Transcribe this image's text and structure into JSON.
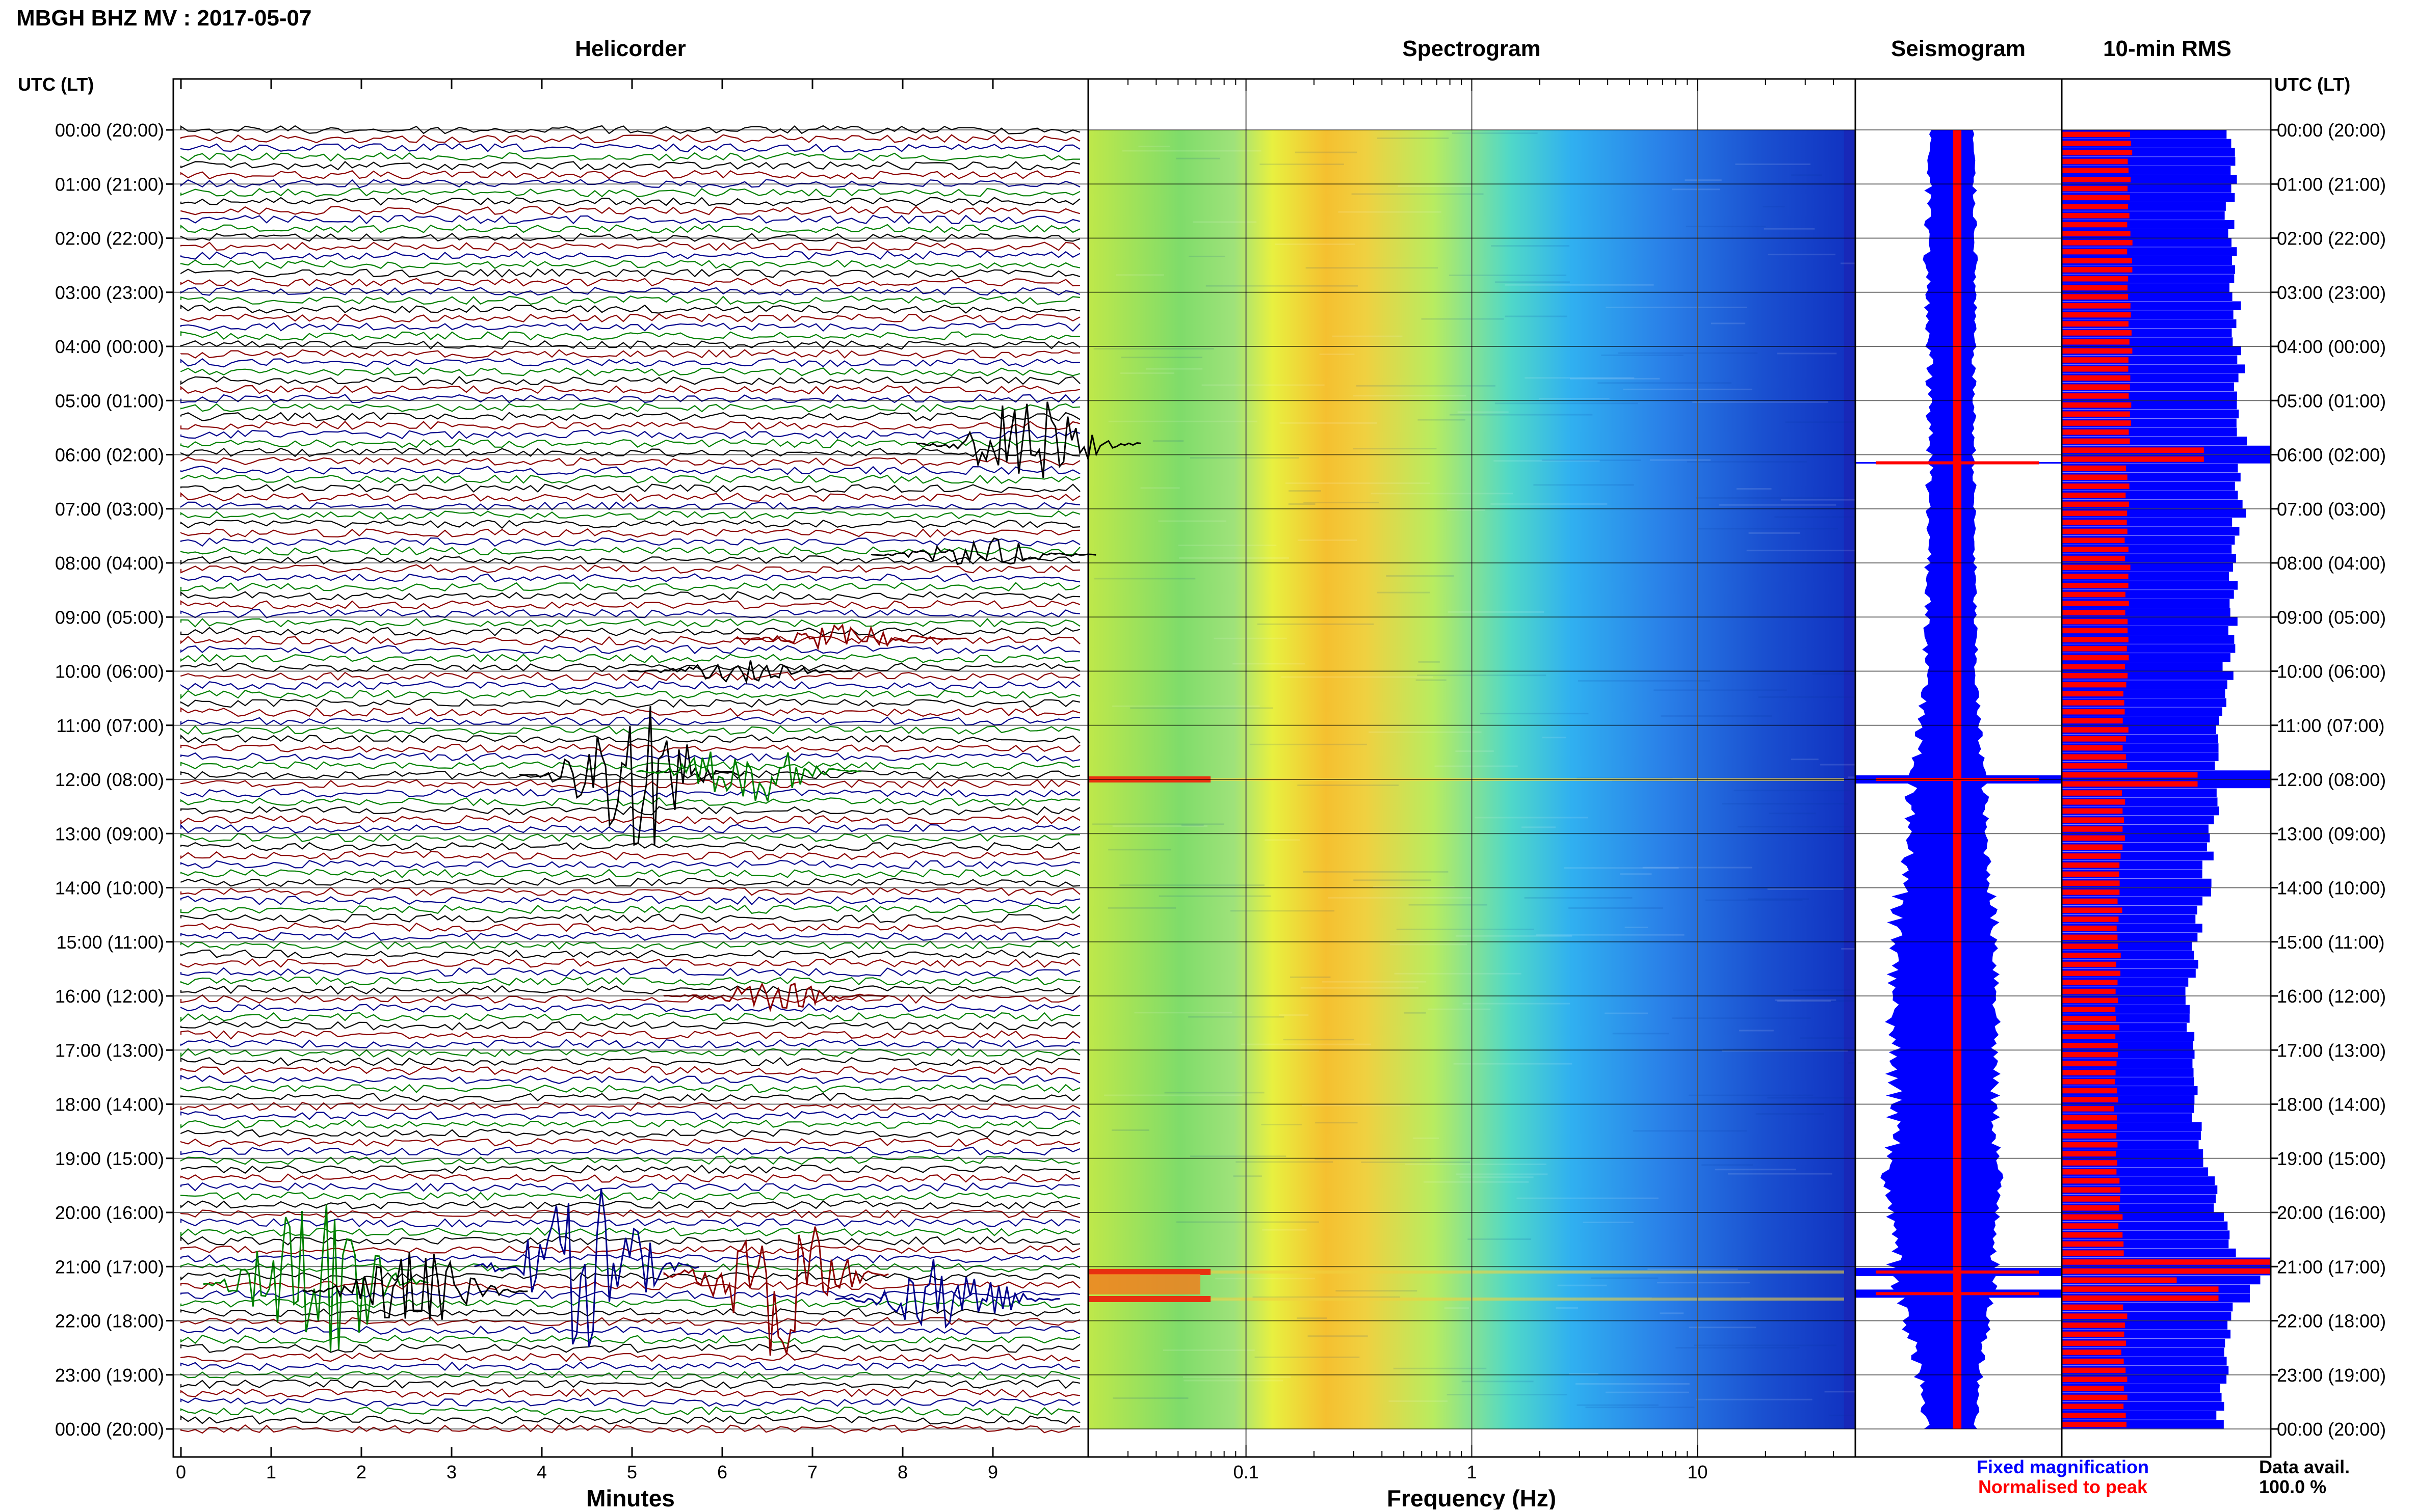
{
  "header": {
    "title": "MBGH BHZ MV : 2017-05-07"
  },
  "panels": {
    "helicorder": "Helicorder",
    "spectrogram": "Spectrogram",
    "seismogram": "Seismogram",
    "rms": "10-min RMS"
  },
  "axes": {
    "utc_label_left": "UTC (LT)",
    "utc_label_right": "UTC (LT)",
    "minutes_label": "Minutes",
    "frequency_label": "Frequency (Hz)"
  },
  "legend": {
    "fixed": "Fixed magnification",
    "normalised": "Normalised to peak",
    "fixed_color": "#0000ff",
    "normalised_color": "#ff0000"
  },
  "data_avail": {
    "label": "Data avail.",
    "value": "100.0 %"
  },
  "colors": {
    "trace_cycle": [
      "#000000",
      "#8b0000",
      "#00008b",
      "#008000"
    ],
    "fixed": "#0000ff",
    "normalised": "#ff0000"
  },
  "chart_data": {
    "type": "heatmap",
    "time_labels": [
      "00:00 (20:00)",
      "01:00 (21:00)",
      "02:00 (22:00)",
      "03:00 (23:00)",
      "04:00 (00:00)",
      "05:00 (01:00)",
      "06:00 (02:00)",
      "07:00 (03:00)",
      "08:00 (04:00)",
      "09:00 (05:00)",
      "10:00 (06:00)",
      "11:00 (07:00)",
      "12:00 (08:00)",
      "13:00 (09:00)",
      "14:00 (10:00)",
      "15:00 (11:00)",
      "16:00 (12:00)",
      "17:00 (13:00)",
      "18:00 (14:00)",
      "19:00 (15:00)",
      "20:00 (16:00)",
      "21:00 (17:00)",
      "22:00 (18:00)",
      "23:00 (19:00)",
      "00:00 (20:00)"
    ],
    "helicorder": {
      "xlim": [
        0,
        10
      ],
      "x_ticks": [
        "0",
        "1",
        "2",
        "3",
        "4",
        "5",
        "6",
        "7",
        "8",
        "9"
      ],
      "events": [
        {
          "hour": 5.8,
          "minute": 9.4,
          "color": "#000000",
          "amp": 3.5
        },
        {
          "hour": 7.85,
          "minute": 8.9,
          "color": "#000000",
          "amp": 1.2
        },
        {
          "hour": 9.4,
          "minute": 7.4,
          "color": "#8b0000",
          "amp": 1.0
        },
        {
          "hour": 10.0,
          "minute": 6.2,
          "color": "#000000",
          "amp": 0.8
        },
        {
          "hour": 11.9,
          "minute": 5.0,
          "color": "#000000",
          "amp": 6.0
        },
        {
          "hour": 11.85,
          "minute": 6.3,
          "color": "#008000",
          "amp": 2.5
        },
        {
          "hour": 16.0,
          "minute": 6.6,
          "color": "#8b0000",
          "amp": 1.0
        },
        {
          "hour": 21.0,
          "minute": 4.5,
          "color": "#00008b",
          "amp": 6.0
        },
        {
          "hour": 21.15,
          "minute": 6.6,
          "color": "#8b0000",
          "amp": 6.0
        },
        {
          "hour": 21.3,
          "minute": 1.5,
          "color": "#008000",
          "amp": 7.0
        },
        {
          "hour": 21.45,
          "minute": 2.6,
          "color": "#000000",
          "amp": 3.0
        },
        {
          "hour": 21.6,
          "minute": 8.5,
          "color": "#00008b",
          "amp": 3.0
        }
      ]
    },
    "spectrogram": {
      "freq_scale": "log",
      "freq_range_hz": [
        0.02,
        50
      ],
      "x_ticks": [
        0.1,
        1,
        10
      ],
      "peak_band_hz": [
        0.2,
        0.6
      ],
      "event_hours": [
        12.0,
        21.1,
        21.6
      ]
    },
    "seismogram": {
      "fixed_width_profile": [
        [
          0,
          0.25
        ],
        [
          2,
          0.3
        ],
        [
          4,
          0.27
        ],
        [
          6,
          0.27
        ],
        [
          8,
          0.28
        ],
        [
          10,
          0.3
        ],
        [
          11,
          0.35
        ],
        [
          12,
          0.45
        ],
        [
          13,
          0.45
        ],
        [
          14,
          0.55
        ],
        [
          15,
          0.62
        ],
        [
          16,
          0.65
        ],
        [
          17,
          0.62
        ],
        [
          18,
          0.6
        ],
        [
          19,
          0.65
        ],
        [
          20,
          0.68
        ],
        [
          21,
          0.6
        ],
        [
          22,
          0.5
        ],
        [
          23,
          0.38
        ],
        [
          24,
          0.3
        ]
      ],
      "normalised_width": 0.04,
      "spike_hours": [
        6.15,
        12.0,
        21.1,
        21.5
      ]
    },
    "rms": {
      "fixed_profile": [
        [
          0,
          0.82
        ],
        [
          2,
          0.82
        ],
        [
          4,
          0.86
        ],
        [
          6,
          0.88
        ],
        [
          8,
          0.84
        ],
        [
          10,
          0.8
        ],
        [
          12,
          0.75
        ],
        [
          13,
          0.72
        ],
        [
          14,
          0.7
        ],
        [
          15,
          0.65
        ],
        [
          16,
          0.62
        ],
        [
          17,
          0.62
        ],
        [
          18,
          0.64
        ],
        [
          19,
          0.7
        ],
        [
          20,
          0.75
        ],
        [
          21,
          0.85
        ],
        [
          22,
          0.82
        ],
        [
          23,
          0.78
        ],
        [
          24,
          0.76
        ]
      ],
      "normalised_profile": [
        [
          0,
          0.33
        ],
        [
          5,
          0.32
        ],
        [
          10,
          0.31
        ],
        [
          12,
          0.3
        ],
        [
          14,
          0.28
        ],
        [
          16,
          0.27
        ],
        [
          18,
          0.26
        ],
        [
          20,
          0.28
        ],
        [
          22,
          0.3
        ],
        [
          24,
          0.3
        ]
      ],
      "spikes": [
        {
          "hour": 6.0,
          "fixed": 1.0,
          "normalised": 0.68
        },
        {
          "hour": 11.95,
          "fixed": 1.0,
          "normalised": 0.45
        },
        {
          "hour": 12.05,
          "fixed": 1.0,
          "normalised": 0.65
        },
        {
          "hour": 21.0,
          "fixed": 1.0,
          "normalised": 1.0
        },
        {
          "hour": 21.3,
          "fixed": 0.95,
          "normalised": 0.55
        },
        {
          "hour": 21.5,
          "fixed": 0.9,
          "normalised": 0.75
        }
      ]
    }
  }
}
